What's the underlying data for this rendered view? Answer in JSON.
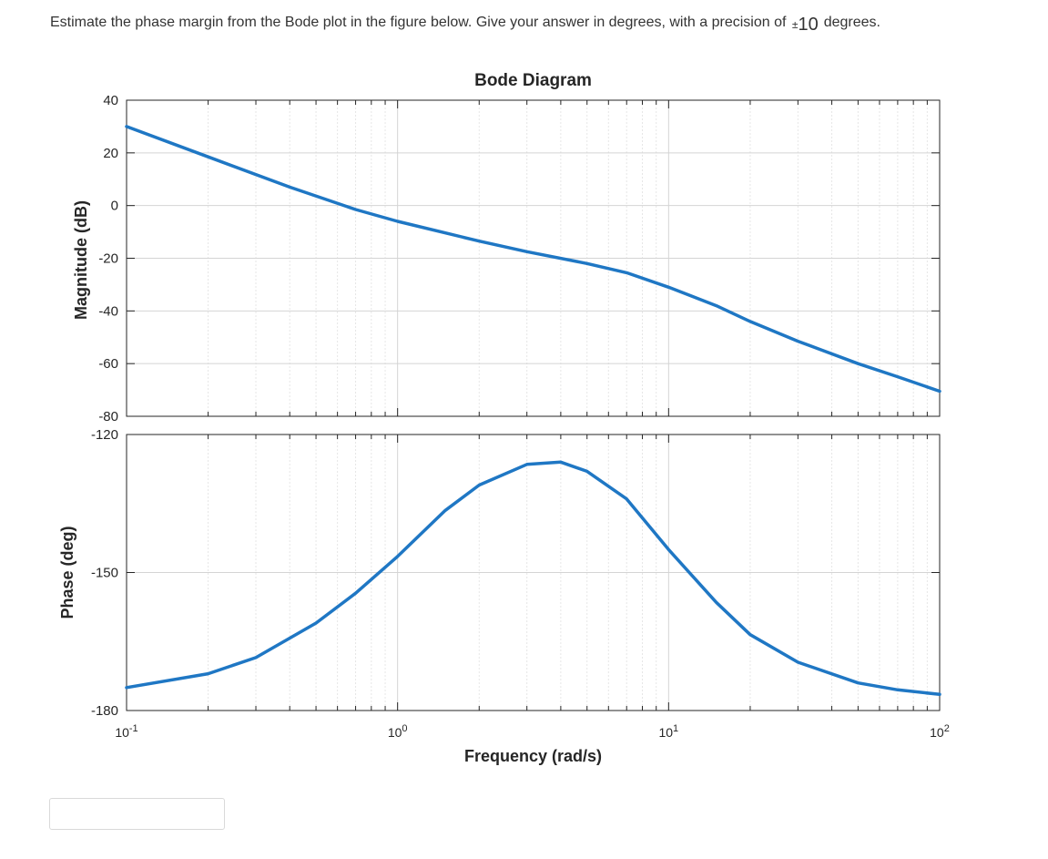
{
  "question": {
    "text_before": "Estimate the phase margin from the Bode plot in the figure below. Give your answer in degrees, with a precision of",
    "plusminus": "±",
    "precision_value": "10",
    "text_after": "degrees."
  },
  "answer": {
    "value": ""
  },
  "chart_data": {
    "type": "line",
    "title": "Bode Diagram",
    "xlabel": "Frequency  (rad/s)",
    "x_scale": "log",
    "x_range": [
      0.1,
      100
    ],
    "x_ticks": [
      {
        "value": 0.1,
        "base": "10",
        "exp": "-1"
      },
      {
        "value": 1,
        "base": "10",
        "exp": "0"
      },
      {
        "value": 10,
        "base": "10",
        "exp": "1"
      },
      {
        "value": 100,
        "base": "10",
        "exp": "2"
      }
    ],
    "grid": true,
    "magnitude": {
      "ylabel": "Magnitude (dB)",
      "ylim": [
        -80,
        40
      ],
      "yticks": [
        40,
        20,
        0,
        -20,
        -40,
        -60,
        -80
      ],
      "color": "#1f77c4",
      "x": [
        0.1,
        0.2,
        0.4,
        0.7,
        1,
        2,
        3,
        5,
        7,
        10,
        15,
        20,
        30,
        50,
        70,
        100
      ],
      "values": [
        30,
        18.5,
        7,
        -1.5,
        -6,
        -13.5,
        -17.5,
        -22,
        -25.5,
        -31,
        -38,
        -44,
        -51.5,
        -60,
        -65,
        -70.5
      ]
    },
    "phase": {
      "ylabel": "Phase (deg)",
      "ylim": [
        -180,
        -120
      ],
      "yticks": [
        -120,
        -150,
        -180
      ],
      "color": "#1f77c4",
      "x": [
        0.1,
        0.2,
        0.3,
        0.5,
        0.7,
        1,
        1.5,
        2,
        3,
        4,
        5,
        7,
        10,
        15,
        20,
        30,
        50,
        70,
        100
      ],
      "values": [
        -175,
        -172,
        -168.5,
        -161,
        -154.5,
        -146.5,
        -136.5,
        -131,
        -126.5,
        -126,
        -128,
        -134,
        -145,
        -156.5,
        -163.5,
        -169.5,
        -174,
        -175.5,
        -176.5
      ]
    }
  }
}
